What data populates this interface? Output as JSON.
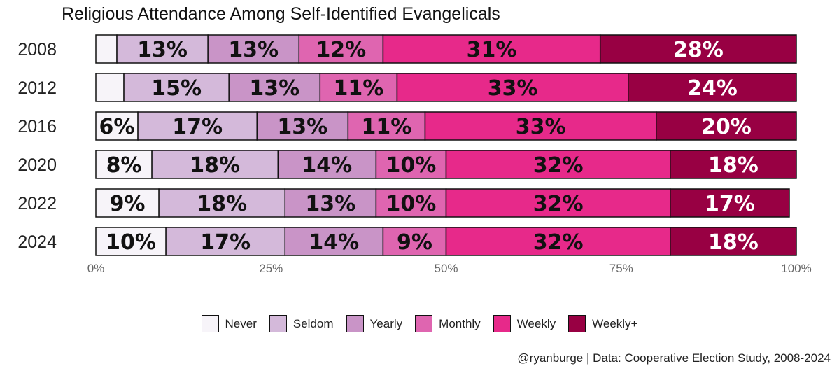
{
  "chart_data": {
    "type": "bar",
    "orientation": "horizontal-stacked",
    "title": "Religious Attendance Among Self-Identified Evangelicals",
    "categories": [
      "2008",
      "2012",
      "2016",
      "2020",
      "2022",
      "2024"
    ],
    "series": [
      {
        "name": "Never",
        "color": "#f7f4f9",
        "values": [
          3,
          4,
          6,
          8,
          9,
          10
        ],
        "labels": [
          "",
          "",
          "6%",
          "8%",
          "9%",
          "10%"
        ]
      },
      {
        "name": "Seldom",
        "color": "#d4b9da",
        "values": [
          13,
          15,
          17,
          18,
          18,
          17
        ],
        "labels": [
          "13%",
          "15%",
          "17%",
          "18%",
          "18%",
          "17%"
        ]
      },
      {
        "name": "Yearly",
        "color": "#c994c7",
        "values": [
          13,
          13,
          13,
          14,
          13,
          14
        ],
        "labels": [
          "13%",
          "13%",
          "13%",
          "14%",
          "13%",
          "14%"
        ]
      },
      {
        "name": "Monthly",
        "color": "#df65b0",
        "values": [
          12,
          11,
          11,
          10,
          10,
          9
        ],
        "labels": [
          "12%",
          "11%",
          "11%",
          "10%",
          "10%",
          "9%"
        ]
      },
      {
        "name": "Weekly",
        "color": "#e7298a",
        "values": [
          31,
          33,
          33,
          32,
          32,
          32
        ],
        "labels": [
          "31%",
          "33%",
          "33%",
          "32%",
          "32%",
          "32%"
        ]
      },
      {
        "name": "Weekly+",
        "color": "#980043",
        "values": [
          28,
          24,
          20,
          18,
          17,
          18
        ],
        "labels": [
          "28%",
          "24%",
          "20%",
          "18%",
          "17%",
          "18%"
        ]
      }
    ],
    "label_colors": [
      "#111111",
      "#111111",
      "#111111",
      "#111111",
      "#111111",
      "#ffffff"
    ],
    "xlim": [
      0,
      100
    ],
    "xticks": [
      0,
      25,
      50,
      75,
      100
    ],
    "xtick_labels": [
      "0%",
      "25%",
      "50%",
      "75%",
      "100%"
    ],
    "xlabel": "",
    "ylabel": "",
    "legend_position": "bottom",
    "grid": false
  },
  "caption": "@ryanburge | Data: Cooperative Election Study, 2008-2024"
}
